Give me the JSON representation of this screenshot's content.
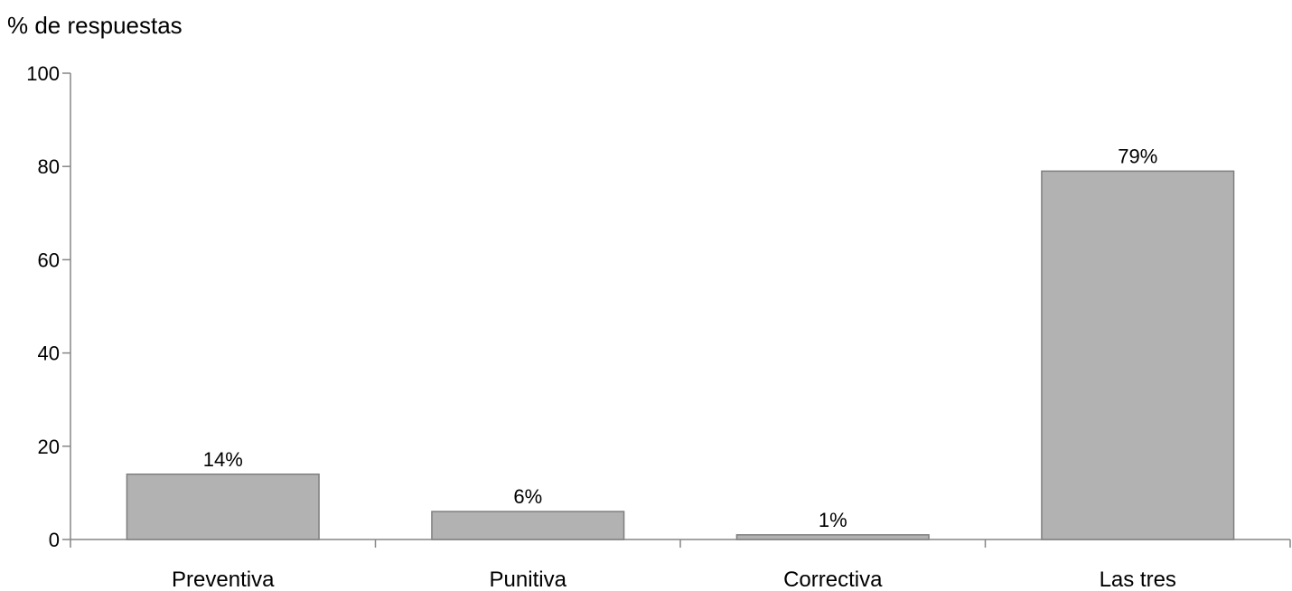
{
  "chart_data": {
    "type": "bar",
    "title": "",
    "xlabel": "",
    "ylabel": "% de respuestas",
    "categories": [
      "Preventiva",
      "Punitiva",
      "Correctiva",
      "Las tres"
    ],
    "values": [
      14,
      6,
      1,
      79
    ],
    "data_labels": [
      "14%",
      "6%",
      "1%",
      "79%"
    ],
    "ylim": [
      0,
      100
    ],
    "yticks": [
      0,
      20,
      40,
      60,
      80,
      100
    ],
    "grid": false,
    "legend": "none",
    "colors": {
      "bar_fill": "#b2b2b2",
      "bar_stroke": "#7f7f7f",
      "axis": "#868686",
      "text": "#000000"
    }
  }
}
